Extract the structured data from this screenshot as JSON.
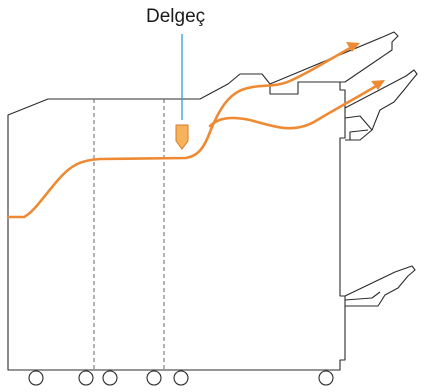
{
  "callout": {
    "label": "Delgeç"
  },
  "colors": {
    "outline": "#2b2b2b",
    "paper_path": "#ee8a33",
    "leader_line": "#2a9fd6",
    "punch_fill": "#f6b35c",
    "background": "#ffffff"
  },
  "icons": [
    "punch-unit-icon",
    "wheel-icon"
  ]
}
